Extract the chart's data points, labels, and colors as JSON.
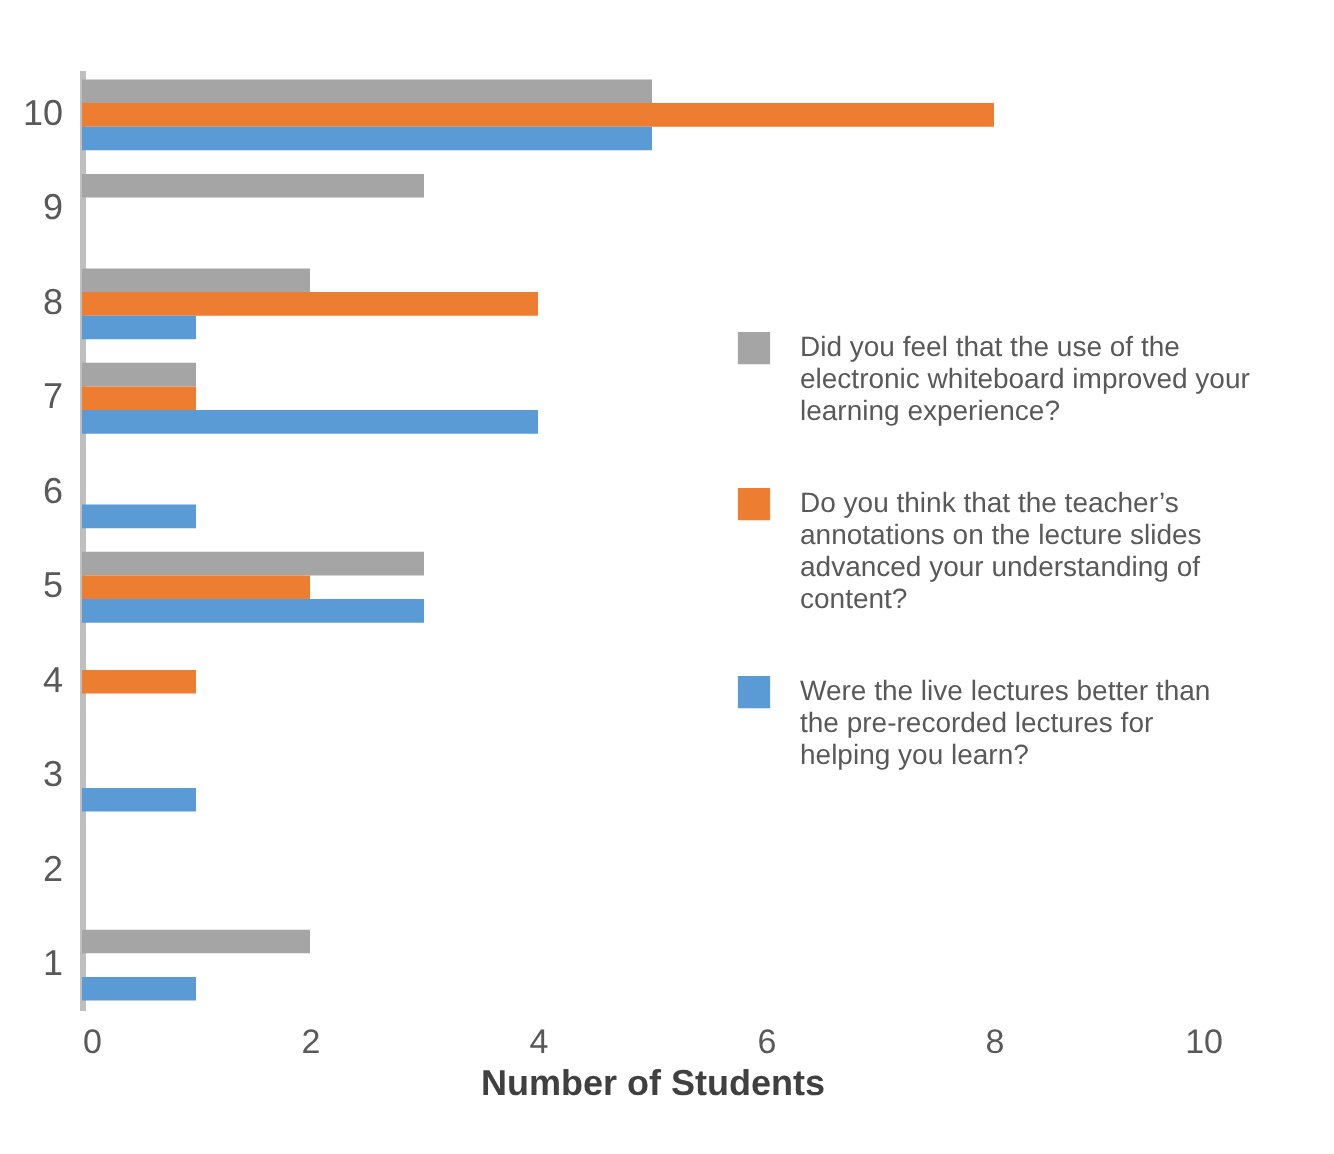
{
  "chart_data": {
    "type": "bar",
    "orientation": "horizontal",
    "xlabel": "Number of Students",
    "categories": [
      "10",
      "9",
      "8",
      "7",
      "6",
      "5",
      "4",
      "3",
      "2",
      "1"
    ],
    "series": [
      {
        "name": "Did you feel that the use of the electronic whiteboard improved your learning experience?",
        "color": "#a5a5a5",
        "values": [
          5,
          3,
          2,
          1,
          0,
          3,
          0,
          0,
          0,
          2
        ]
      },
      {
        "name": "Do you think that the teacher’s annotations on the lecture slides advanced your understanding of content?",
        "color": "#ed7d31",
        "values": [
          8,
          0,
          4,
          1,
          0,
          2,
          1,
          0,
          0,
          0
        ]
      },
      {
        "name": "Were the live lectures better than the pre-recorded lectures for helping you learn?",
        "color": "#5b9bd5",
        "values": [
          5,
          0,
          1,
          4,
          1,
          3,
          0,
          1,
          0,
          1
        ]
      }
    ],
    "xlim": [
      0,
      10
    ],
    "xticks": [
      0,
      2,
      4,
      6,
      8,
      10
    ],
    "grid": false,
    "legend": "right"
  }
}
